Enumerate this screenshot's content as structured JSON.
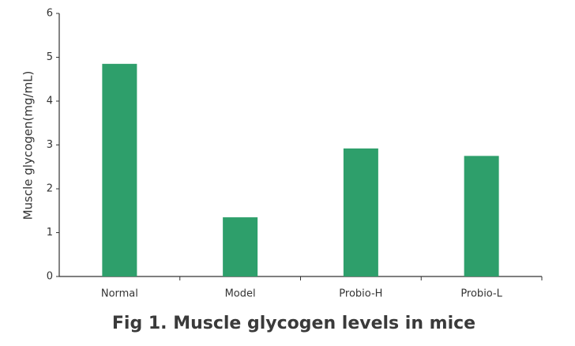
{
  "chart_data": {
    "type": "bar",
    "title": "Fig 1. Muscle glycogen levels in mice",
    "y_label": "Muscle glycogen(mg/mL)",
    "categories": [
      "Normal",
      "Model",
      "Probio-H",
      "Probio-L"
    ],
    "values": [
      4.85,
      1.35,
      2.92,
      2.75
    ],
    "color": "#2e9f6b",
    "ylim": [
      0,
      6
    ],
    "yticks": [
      0,
      1,
      2,
      3,
      4,
      5,
      6
    ],
    "grid": false
  }
}
